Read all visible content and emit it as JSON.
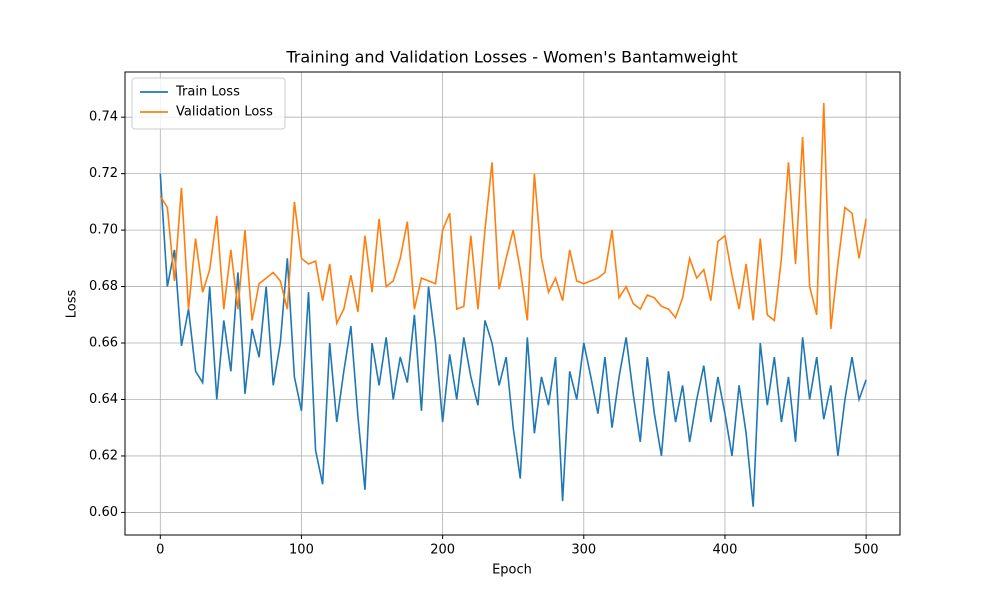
{
  "chart_data": {
    "type": "line",
    "title": "Training and Validation Losses - Women's Bantamweight",
    "xlabel": "Epoch",
    "ylabel": "Loss",
    "x": [
      0,
      5,
      10,
      15,
      20,
      25,
      30,
      35,
      40,
      45,
      50,
      55,
      60,
      65,
      70,
      75,
      80,
      85,
      90,
      95,
      100,
      105,
      110,
      115,
      120,
      125,
      130,
      135,
      140,
      145,
      150,
      155,
      160,
      165,
      170,
      175,
      180,
      185,
      190,
      195,
      200,
      205,
      210,
      215,
      220,
      225,
      230,
      235,
      240,
      245,
      250,
      255,
      260,
      265,
      270,
      275,
      280,
      285,
      290,
      295,
      300,
      305,
      310,
      315,
      320,
      325,
      330,
      335,
      340,
      345,
      350,
      355,
      360,
      365,
      370,
      375,
      380,
      385,
      390,
      395,
      400,
      405,
      410,
      415,
      420,
      425,
      430,
      435,
      440,
      445,
      450,
      455,
      460,
      465,
      470,
      475,
      480,
      485,
      490,
      495,
      500
    ],
    "series": [
      {
        "name": "Train Loss",
        "color": "#1f77b4",
        "values": [
          0.72,
          0.68,
          0.693,
          0.659,
          0.672,
          0.65,
          0.646,
          0.68,
          0.64,
          0.668,
          0.65,
          0.685,
          0.642,
          0.665,
          0.655,
          0.68,
          0.645,
          0.66,
          0.69,
          0.648,
          0.636,
          0.678,
          0.622,
          0.61,
          0.66,
          0.632,
          0.65,
          0.666,
          0.634,
          0.608,
          0.66,
          0.645,
          0.662,
          0.64,
          0.655,
          0.646,
          0.67,
          0.636,
          0.68,
          0.66,
          0.632,
          0.656,
          0.64,
          0.662,
          0.648,
          0.638,
          0.668,
          0.66,
          0.645,
          0.655,
          0.63,
          0.612,
          0.662,
          0.628,
          0.648,
          0.638,
          0.655,
          0.604,
          0.65,
          0.64,
          0.66,
          0.648,
          0.635,
          0.655,
          0.63,
          0.648,
          0.662,
          0.642,
          0.625,
          0.655,
          0.635,
          0.62,
          0.65,
          0.632,
          0.645,
          0.625,
          0.64,
          0.652,
          0.632,
          0.648,
          0.635,
          0.62,
          0.645,
          0.628,
          0.602,
          0.66,
          0.638,
          0.655,
          0.632,
          0.648,
          0.625,
          0.662,
          0.64,
          0.655,
          0.633,
          0.645,
          0.62,
          0.64,
          0.655,
          0.64,
          0.647
        ]
      },
      {
        "name": "Validation Loss",
        "color": "#ff7f0e",
        "values": [
          0.712,
          0.708,
          0.682,
          0.715,
          0.672,
          0.697,
          0.678,
          0.686,
          0.705,
          0.672,
          0.693,
          0.672,
          0.7,
          0.668,
          0.681,
          0.683,
          0.685,
          0.682,
          0.672,
          0.71,
          0.69,
          0.688,
          0.689,
          0.675,
          0.688,
          0.667,
          0.672,
          0.684,
          0.671,
          0.698,
          0.678,
          0.704,
          0.68,
          0.682,
          0.69,
          0.703,
          0.672,
          0.683,
          0.682,
          0.681,
          0.7,
          0.706,
          0.672,
          0.673,
          0.698,
          0.672,
          0.7,
          0.724,
          0.679,
          0.69,
          0.7,
          0.686,
          0.668,
          0.72,
          0.69,
          0.678,
          0.683,
          0.675,
          0.693,
          0.682,
          0.681,
          0.682,
          0.683,
          0.685,
          0.7,
          0.676,
          0.68,
          0.674,
          0.672,
          0.677,
          0.676,
          0.673,
          0.672,
          0.669,
          0.676,
          0.69,
          0.683,
          0.686,
          0.675,
          0.696,
          0.698,
          0.684,
          0.672,
          0.688,
          0.668,
          0.697,
          0.67,
          0.668,
          0.69,
          0.724,
          0.688,
          0.733,
          0.68,
          0.67,
          0.745,
          0.665,
          0.688,
          0.708,
          0.706,
          0.69,
          0.704
        ]
      }
    ],
    "xlim": [
      -25,
      524
    ],
    "ylim": [
      0.592,
      0.756
    ],
    "xticks": [
      0,
      100,
      200,
      300,
      400,
      500
    ],
    "yticks": [
      {
        "value": 0.6,
        "label": "0.60"
      },
      0.62,
      0.64,
      0.66,
      0.68,
      {
        "value": 0.7,
        "label": "0.70"
      },
      0.72,
      0.74
    ],
    "grid": true,
    "legend": "upper left"
  }
}
